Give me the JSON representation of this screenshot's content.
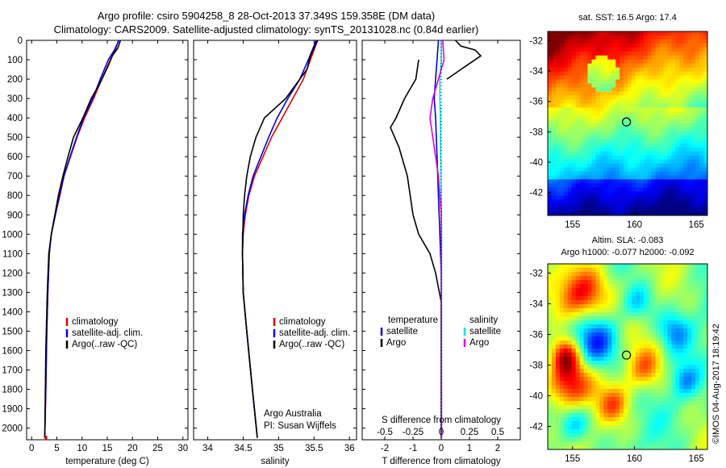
{
  "header": {
    "line1": "Argo profile: csiro 5904258_8 28-Oct-2013 37.349S 159.358E (DM data)",
    "line2": "Climatology: CARS2009. Satellite-adjusted climatology: synTS_20131028.nc (0.84d earlier)"
  },
  "colors": {
    "climatology": "#e00000",
    "satellite": "#0000e0",
    "argo": "#000000",
    "salinity_sat": "#00e0e0",
    "salinity_argo": "#e000e0"
  },
  "chart_data": [
    {
      "type": "line",
      "panel": "temperature",
      "xlabel": "temperature (deg C)",
      "ylabel": "",
      "xlim": [
        -1,
        31
      ],
      "ylim": [
        2060,
        0
      ],
      "xticks": [
        "0",
        "5",
        "10",
        "15",
        "20",
        "25",
        "30"
      ],
      "yticks": [
        "0",
        "100",
        "200",
        "300",
        "400",
        "500",
        "600",
        "700",
        "800",
        "900",
        "1000",
        "1100",
        "1200",
        "1300",
        "1400",
        "1500",
        "1600",
        "1700",
        "1800",
        "1900",
        "2000"
      ],
      "legend": [
        "climatology",
        "satellite-adj. clim.",
        "Argo(..raw -QC)"
      ],
      "series": [
        {
          "name": "climatology",
          "color": "#e00000",
          "x": [
            17.2,
            16.6,
            15.6,
            13.9,
            12.3,
            10.5,
            9.0,
            7.7,
            6.4,
            5.6,
            4.7,
            3.9,
            3.5,
            3.2,
            3.0,
            2.8,
            2.6
          ],
          "y": [
            0,
            50,
            100,
            200,
            300,
            400,
            500,
            600,
            700,
            800,
            900,
            1000,
            1100,
            1300,
            1500,
            1800,
            2050
          ]
        },
        {
          "name": "satellite-adj. clim.",
          "color": "#0000e0",
          "x": [
            17.3,
            16.4,
            15.2,
            13.6,
            12.1,
            10.3,
            8.9,
            7.6,
            6.4,
            5.5,
            4.7,
            3.9,
            3.5,
            3.2,
            3.0,
            2.8,
            2.6
          ],
          "y": [
            0,
            50,
            100,
            200,
            300,
            400,
            500,
            600,
            700,
            800,
            900,
            1000,
            1100,
            1300,
            1500,
            1800,
            2050
          ]
        },
        {
          "name": "Argo(..raw -QC)",
          "color": "#000000",
          "x": [
            17.6,
            17.1,
            16.0,
            15.2,
            13.4,
            11.8,
            10.5,
            9.8,
            8.3,
            7.2,
            6.2,
            5.3,
            4.6,
            3.9,
            3.4,
            3.1,
            2.8,
            2.6
          ],
          "y": [
            0,
            40,
            80,
            130,
            230,
            300,
            380,
            420,
            500,
            600,
            700,
            800,
            900,
            1000,
            1100,
            1300,
            1600,
            2050
          ]
        }
      ]
    },
    {
      "type": "line",
      "panel": "salinity",
      "xlabel": "salinity",
      "xlim": [
        33.8,
        36.1
      ],
      "ylim": [
        2060,
        0
      ],
      "xticks": [
        "34",
        "34.5",
        "35",
        "35.5",
        "36"
      ],
      "legend": [
        "climatology",
        "satellite-adj. clim.",
        "Argo(..raw -QC)"
      ],
      "annotation": [
        "Argo Australia",
        "PI: Susan Wijffels"
      ],
      "series": [
        {
          "name": "climatology",
          "color": "#e00000",
          "x": [
            35.55,
            35.45,
            35.35,
            35.2,
            35.05,
            34.9,
            34.78,
            34.66,
            34.58,
            34.53,
            34.5,
            34.49,
            34.5,
            34.55,
            34.63,
            34.7
          ],
          "y": [
            0,
            100,
            200,
            300,
            400,
            500,
            600,
            700,
            800,
            900,
            1000,
            1100,
            1300,
            1500,
            1800,
            2050
          ]
        },
        {
          "name": "satellite-adj. clim.",
          "color": "#0000e0",
          "x": [
            35.53,
            35.42,
            35.3,
            35.13,
            34.98,
            34.86,
            34.75,
            34.64,
            34.57,
            34.52,
            34.49,
            34.49,
            34.5,
            34.55,
            34.63,
            34.7
          ],
          "y": [
            0,
            100,
            200,
            300,
            400,
            500,
            600,
            700,
            800,
            900,
            1000,
            1100,
            1300,
            1500,
            1800,
            2050
          ]
        },
        {
          "name": "Argo(..raw -QC)",
          "color": "#000000",
          "x": [
            35.55,
            35.45,
            35.4,
            35.1,
            34.8,
            34.68,
            34.6,
            34.55,
            34.52,
            34.5,
            34.49,
            34.5,
            34.55,
            34.63,
            34.7
          ],
          "y": [
            0,
            80,
            150,
            300,
            400,
            500,
            600,
            700,
            800,
            900,
            1100,
            1300,
            1500,
            1800,
            2050
          ]
        }
      ]
    },
    {
      "type": "line",
      "panel": "difference",
      "xlabel": "T difference from climatology",
      "xlabel_top": "S difference from climatology",
      "xlim": [
        -2.8,
        2.8
      ],
      "ylim": [
        2060,
        0
      ],
      "xticks": [
        "-2",
        "-1",
        "0",
        "1",
        "2"
      ],
      "xticks_s": [
        "-0.5",
        "-0.25",
        "0",
        "0.25",
        "0.5"
      ],
      "legend_temperature": {
        "title": "temperature",
        "items": [
          "satellite",
          "Argo"
        ]
      },
      "legend_salinity": {
        "title": "salinity",
        "items": [
          "satellite",
          "Argo"
        ]
      },
      "series": [
        {
          "name": "temperature satellite",
          "color": "#0000e0",
          "x": [
            -0.1,
            -0.15,
            -0.2,
            -0.25,
            -0.2,
            -0.15,
            -0.1,
            -0.05,
            0,
            0
          ],
          "y": [
            0,
            100,
            200,
            300,
            400,
            600,
            800,
            1000,
            1200,
            2050
          ]
        },
        {
          "name": "temperature Argo",
          "color": "#000000",
          "x": [
            -0.8,
            -0.9,
            -1.3,
            -1.6,
            -1.8,
            -1.5,
            -1.2,
            -1.0,
            -0.8,
            -0.4,
            -0.2,
            0,
            0
          ],
          "y": [
            100,
            200,
            300,
            400,
            450,
            550,
            700,
            900,
            1000,
            1100,
            1200,
            1350,
            2050
          ]
        },
        {
          "name": "salinity satellite",
          "color": "#00e0e0",
          "x": [
            0.0,
            0.0,
            -0.05,
            -0.05,
            -0.03,
            -0.02,
            0,
            0.01,
            0.01
          ],
          "y": [
            0,
            100,
            200,
            300,
            400,
            600,
            800,
            1000,
            2050
          ]
        },
        {
          "name": "salinity Argo",
          "color": "#e000e0",
          "x": [
            0.05,
            0.1,
            -0.1,
            -0.3,
            -0.4,
            -0.3,
            -0.1,
            0,
            0.01
          ],
          "y": [
            0,
            100,
            200,
            300,
            400,
            500,
            700,
            900,
            2050
          ]
        },
        {
          "name": "Argo near surface",
          "color": "#000000",
          "x": [
            0.5,
            0.7,
            1.2,
            1.4,
            1.0,
            0.6,
            0.2
          ],
          "y": [
            0,
            30,
            50,
            80,
            120,
            160,
            200
          ]
        }
      ]
    },
    {
      "type": "heatmap",
      "panel": "sst",
      "title": "sat. SST: 16.5 Argo: 17.4",
      "xticks": [
        "155",
        "160",
        "165"
      ],
      "yticks": [
        "-32",
        "-34",
        "-36",
        "-38",
        "-40",
        "-42"
      ],
      "marker": {
        "lon": 159.358,
        "lat": -37.349
      }
    },
    {
      "type": "heatmap",
      "panel": "sla",
      "title_line1": "Altim. SLA: -0.083",
      "title_line2": "Argo h1000: -0.077 h2000: -0.092",
      "xticks": [
        "155",
        "160",
        "165"
      ],
      "yticks": [
        "-32",
        "-34",
        "-36",
        "-38",
        "-40",
        "-42"
      ],
      "marker": {
        "lon": 159.358,
        "lat": -37.349
      }
    }
  ],
  "side_text": "©IMOS 04-Aug-2017 18:19:42"
}
